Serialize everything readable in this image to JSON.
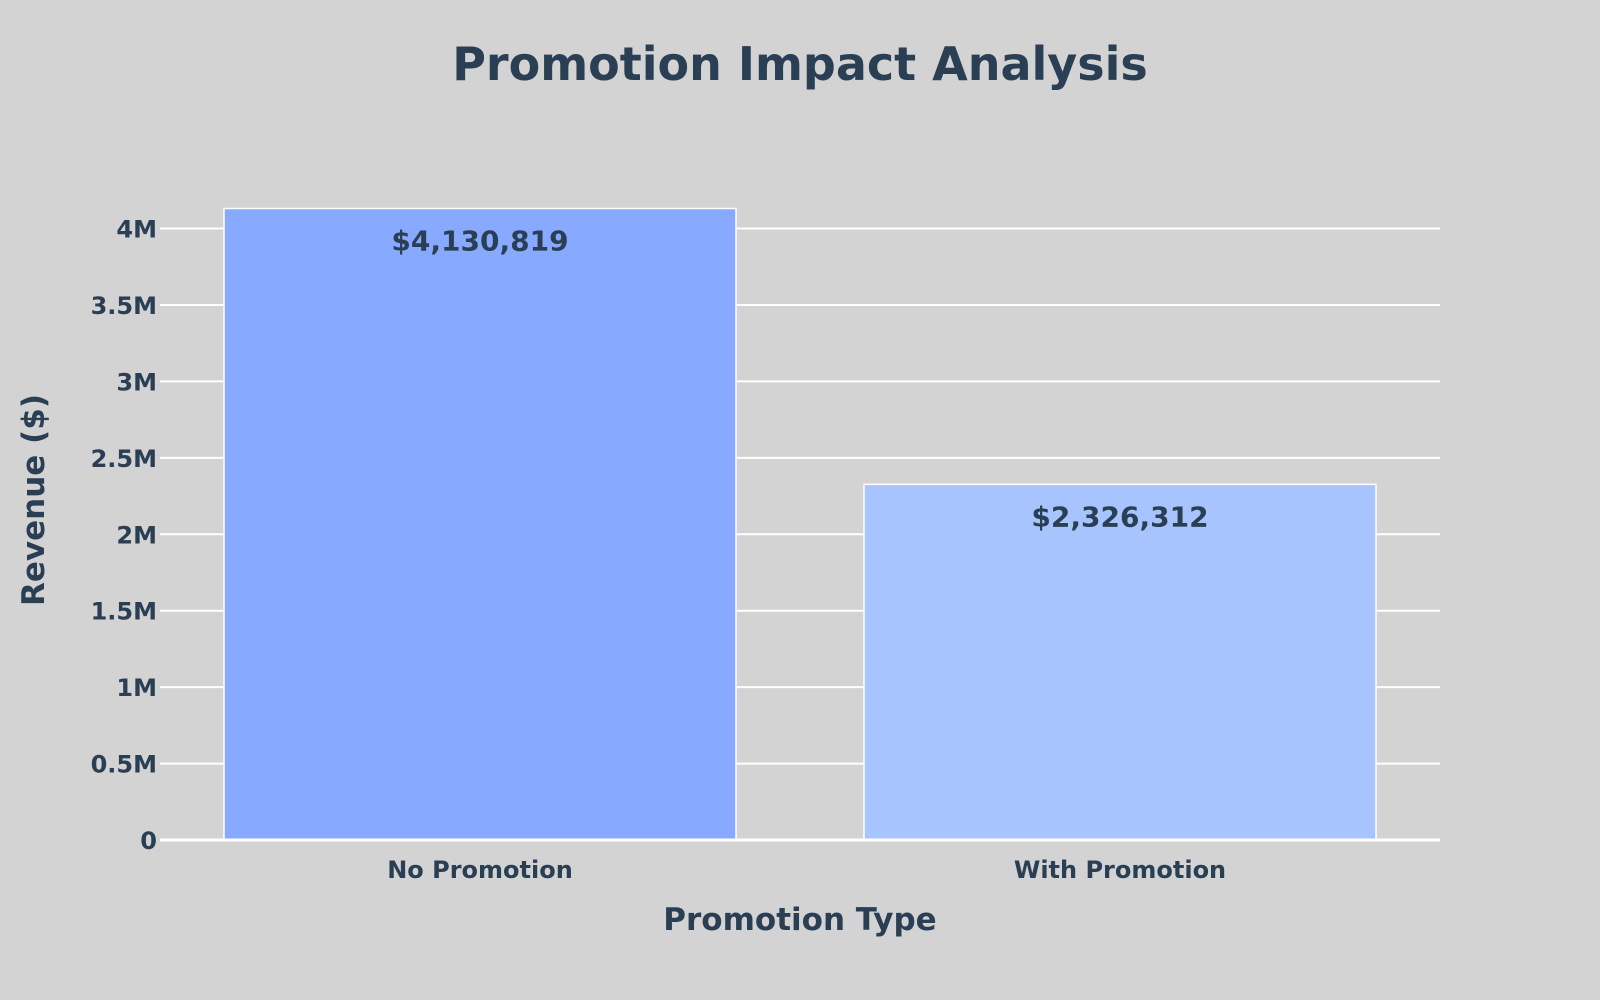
{
  "chart_data": {
    "type": "bar",
    "title": "Promotion Impact Analysis",
    "xlabel": "Promotion Type",
    "ylabel": "Revenue ($)",
    "categories": [
      "No Promotion",
      "With Promotion"
    ],
    "values": [
      4130819,
      2326312
    ],
    "data_labels": [
      "$4,130,819",
      "$2,326,312"
    ],
    "bar_colors": [
      "#87a9ff",
      "#a8c4ff"
    ],
    "ylim": [
      0,
      4350000
    ],
    "yticks": [
      0,
      500000,
      1000000,
      1500000,
      2000000,
      2500000,
      3000000,
      3500000,
      4000000
    ],
    "ytick_labels": [
      "0",
      "0.5M",
      "1M",
      "1.5M",
      "2M",
      "2.5M",
      "3M",
      "3.5M",
      "4M"
    ],
    "grid": true,
    "legend": "none",
    "colors": {
      "background": "#d3d3d3",
      "text": "#2a3f54",
      "grid": "#ffffff"
    }
  }
}
